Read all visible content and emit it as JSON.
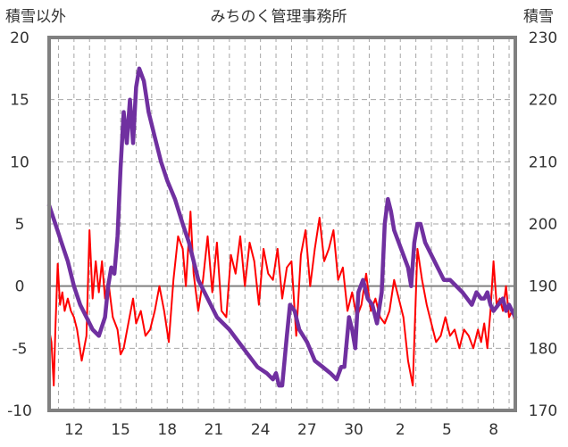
{
  "chart_data": {
    "type": "line",
    "title": "みちのく管理事務所",
    "y_left_label": "積雪以外",
    "y_right_label": "積雪",
    "y_left_ticks": [
      "20",
      "15",
      "10",
      "5",
      "0",
      "-5",
      "-10"
    ],
    "y_right_ticks": [
      "230",
      "220",
      "210",
      "200",
      "190",
      "180",
      "170"
    ],
    "x_ticks": [
      {
        "label": "12",
        "day": 12
      },
      {
        "label": "15",
        "day": 15
      },
      {
        "label": "18",
        "day": 18
      },
      {
        "label": "21",
        "day": 21
      },
      {
        "label": "24",
        "day": 24
      },
      {
        "label": "27",
        "day": 27
      },
      {
        "label": "30",
        "day": 30
      },
      {
        "label": "2",
        "day": 33
      },
      {
        "label": "5",
        "day": 36
      },
      {
        "label": "8",
        "day": 39
      }
    ],
    "x_range": [
      10.4,
      40.4
    ],
    "y_left_range": [
      -10,
      20
    ],
    "y_right_range": [
      170,
      230
    ],
    "grid": true,
    "colors": {
      "temperature": "#ff0000",
      "snow": "#7030a0",
      "axis": "#808080",
      "grid": "#a6a6a6"
    },
    "series": [
      {
        "key": "temperature",
        "axis": "left",
        "x": [
          10.4,
          10.55,
          10.7,
          10.8,
          10.95,
          11.1,
          11.25,
          11.4,
          11.6,
          11.8,
          12.0,
          12.2,
          12.5,
          12.8,
          13.0,
          13.2,
          13.4,
          13.6,
          13.8,
          14.0,
          14.2,
          14.5,
          14.8,
          15.0,
          15.2,
          15.5,
          15.8,
          16.0,
          16.3,
          16.6,
          16.9,
          17.2,
          17.5,
          17.8,
          18.1,
          18.4,
          18.7,
          19.0,
          19.2,
          19.5,
          19.7,
          20.0,
          20.3,
          20.6,
          20.9,
          21.2,
          21.5,
          21.8,
          22.1,
          22.4,
          22.7,
          23.0,
          23.3,
          23.6,
          23.9,
          24.2,
          24.5,
          24.8,
          25.1,
          25.4,
          25.7,
          26.0,
          26.3,
          26.6,
          26.9,
          27.2,
          27.5,
          27.8,
          28.1,
          28.4,
          28.7,
          29.0,
          29.3,
          29.6,
          29.9,
          30.2,
          30.5,
          30.8,
          31.1,
          31.4,
          31.7,
          32.0,
          32.3,
          32.6,
          32.9,
          33.2,
          33.5,
          33.8,
          34.1,
          34.4,
          34.7,
          35.0,
          35.3,
          35.6,
          35.9,
          36.2,
          36.5,
          36.8,
          37.1,
          37.4,
          37.7,
          38.0,
          38.2,
          38.4,
          38.6,
          38.8,
          39.0,
          39.2,
          39.4,
          39.6,
          39.8,
          40.0,
          40.2,
          40.4
        ],
        "values": [
          -3.5,
          -4.5,
          -8.0,
          -3.5,
          1.8,
          -1.5,
          -0.5,
          -2.0,
          -1.0,
          -2.0,
          -2.5,
          -3.5,
          -6.0,
          -4.0,
          4.5,
          -1.0,
          2.0,
          -0.5,
          2.0,
          -1.0,
          0.5,
          -2.5,
          -3.5,
          -5.5,
          -5.0,
          -3.0,
          -1.0,
          -3.0,
          -2.0,
          -4.0,
          -3.5,
          -2.0,
          0.0,
          -2.0,
          -4.5,
          0.5,
          4.0,
          3.0,
          0.0,
          6.0,
          1.0,
          -2.0,
          0.5,
          4.0,
          -0.5,
          3.5,
          -2.0,
          -2.5,
          2.5,
          1.0,
          4.0,
          0.0,
          3.5,
          2.0,
          -1.5,
          3.0,
          1.0,
          0.5,
          3.0,
          -1.0,
          1.5,
          2.0,
          -4.0,
          2.5,
          4.5,
          0.0,
          3.0,
          5.5,
          2.0,
          3.0,
          4.5,
          0.5,
          1.5,
          -2.0,
          -0.5,
          -2.5,
          -1.5,
          1.0,
          -2.0,
          -1.0,
          -2.5,
          -3.0,
          -2.0,
          0.5,
          -1.0,
          -2.5,
          -6.0,
          -8.0,
          3.0,
          0.5,
          -1.5,
          -3.0,
          -4.5,
          -4.0,
          -2.5,
          -4.0,
          -3.5,
          -5.0,
          -3.5,
          -4.0,
          -5.0,
          -3.5,
          -4.5,
          -3.0,
          -5.0,
          -2.0,
          2.0,
          -1.5,
          -1.0,
          -2.0,
          0.0,
          -2.5,
          -2.0,
          -3.0
        ]
      },
      {
        "key": "snow",
        "axis": "right",
        "x": [
          10.4,
          10.8,
          11.2,
          11.6,
          12.0,
          12.4,
          12.8,
          13.2,
          13.6,
          14.0,
          14.2,
          14.4,
          14.6,
          14.8,
          15.0,
          15.2,
          15.4,
          15.6,
          15.8,
          16.0,
          16.2,
          16.5,
          16.8,
          17.2,
          17.6,
          18.0,
          18.5,
          19.0,
          19.4,
          19.8,
          20.0,
          20.4,
          20.8,
          21.2,
          21.6,
          22.0,
          22.6,
          23.2,
          23.8,
          24.4,
          24.8,
          25.0,
          25.2,
          25.4,
          25.7,
          25.9,
          26.2,
          26.5,
          27.0,
          27.5,
          28.0,
          28.5,
          28.9,
          29.2,
          29.4,
          29.7,
          29.9,
          30.1,
          30.3,
          30.6,
          30.9,
          31.2,
          31.5,
          31.8,
          32.0,
          32.2,
          32.4,
          32.6,
          32.9,
          33.2,
          33.5,
          33.7,
          33.9,
          34.1,
          34.3,
          34.6,
          35.0,
          35.4,
          35.8,
          36.2,
          36.6,
          37.0,
          37.3,
          37.6,
          37.9,
          38.2,
          38.4,
          38.6,
          38.8,
          39.0,
          39.3,
          39.6,
          39.8,
          40.0,
          40.2,
          40.4
        ],
        "values": [
          203,
          200,
          197,
          194,
          190,
          187,
          185,
          183,
          182,
          185,
          190,
          193,
          192,
          198,
          209,
          218,
          213,
          220,
          213,
          222,
          225,
          223,
          218,
          214,
          210,
          207,
          204,
          200,
          197,
          193,
          191,
          189,
          187,
          185,
          184,
          183,
          181,
          179,
          177,
          176,
          175,
          176,
          174,
          174,
          182,
          187,
          186,
          183,
          181,
          178,
          177,
          176,
          175,
          177,
          177,
          185,
          183,
          180,
          189,
          191,
          188,
          187,
          184,
          189,
          200,
          204,
          202,
          199,
          197,
          195,
          193,
          190,
          197,
          200,
          200,
          197,
          195,
          193,
          191,
          191,
          190,
          189,
          188,
          187,
          189,
          188,
          188,
          189,
          187,
          186,
          187,
          188,
          186,
          187,
          186,
          185
        ]
      }
    ]
  }
}
